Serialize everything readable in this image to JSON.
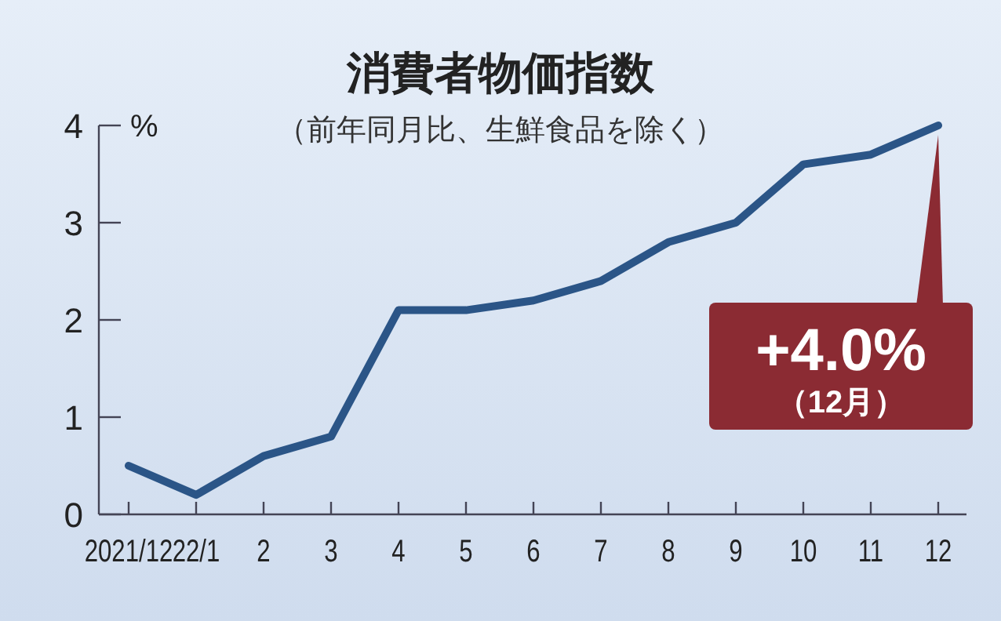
{
  "chart_data": {
    "type": "line",
    "title": "消費者物価指数",
    "subtitle": "（前年同月比、生鮮食品を除く）",
    "ylabel": "%",
    "categories": [
      "2021/12",
      "22/1",
      "2",
      "3",
      "4",
      "5",
      "6",
      "7",
      "8",
      "9",
      "10",
      "11",
      "12"
    ],
    "series": [
      {
        "color": "#2b5587",
        "values": [
          0.5,
          0.2,
          0.6,
          0.8,
          2.1,
          2.1,
          2.2,
          2.4,
          2.8,
          3.0,
          3.6,
          3.7,
          4.0
        ]
      }
    ],
    "ylim": [
      0,
      4
    ],
    "yticks": [
      0,
      1,
      2,
      3,
      4
    ],
    "grid": false,
    "marker": "none",
    "line_style": "solid",
    "annotations": [
      {
        "text": "+4.0%\n（12月）",
        "x": "12",
        "y": 4.0
      }
    ]
  }
}
